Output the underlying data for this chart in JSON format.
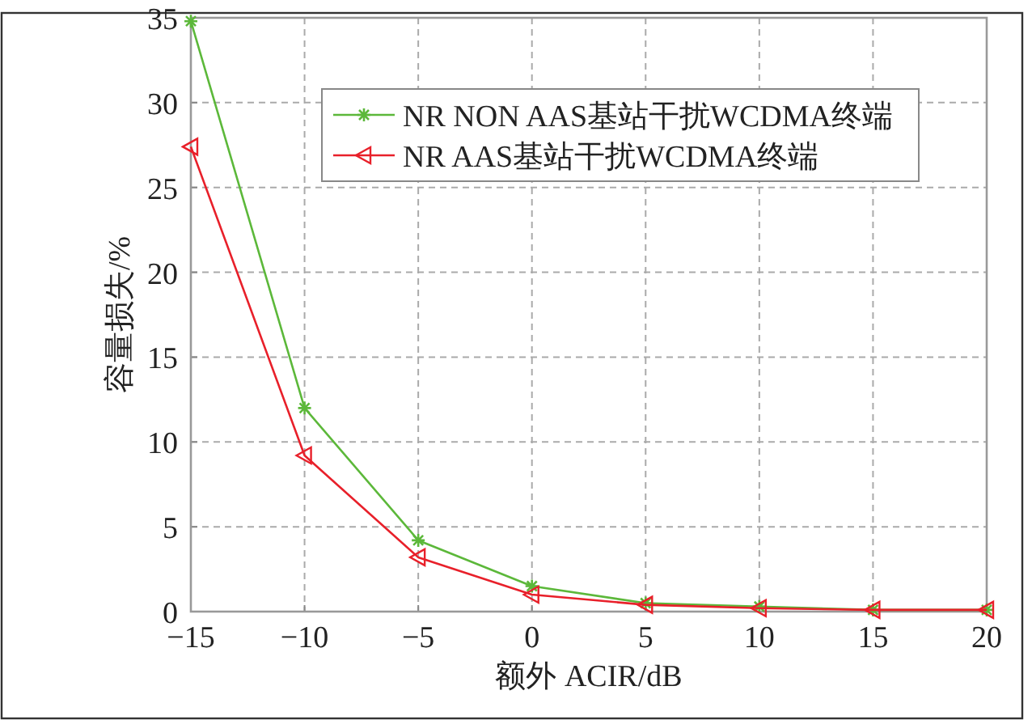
{
  "chart_data": {
    "type": "line",
    "xlabel": "额外 ACIR/dB",
    "ylabel": "容量损失/%",
    "x": [
      -15,
      -10,
      -5,
      0,
      5,
      10,
      15,
      20
    ],
    "xlim": [
      -15,
      20
    ],
    "xticks": [
      -15,
      -10,
      -5,
      0,
      5,
      10,
      15,
      20
    ],
    "ylim": [
      0,
      35
    ],
    "yticks": [
      0,
      5,
      10,
      15,
      20,
      25,
      30,
      35
    ],
    "grid": true,
    "legend": "top right",
    "series": [
      {
        "name": "NR NON AAS基站干扰WCDMA终端",
        "color": "#5cb83a",
        "marker": "cross",
        "values": [
          34.8,
          12.0,
          4.2,
          1.5,
          0.5,
          0.3,
          0.1,
          0.1
        ]
      },
      {
        "name": "NR AAS基站干扰WCDMA终端",
        "color": "#e8202a",
        "marker": "triangle",
        "values": [
          27.4,
          9.2,
          3.2,
          1.0,
          0.4,
          0.2,
          0.1,
          0.1
        ]
      }
    ]
  }
}
